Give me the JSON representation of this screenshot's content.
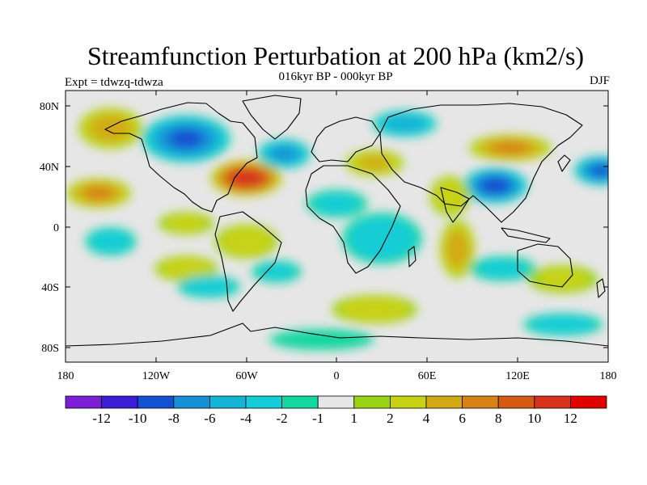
{
  "title": "Streamfunction Perturbation at 200 hPa (km2/s)",
  "subtitle": "016kyr BP - 000kyr BP",
  "left_label": "Expt = tdwzq-tdwza",
  "right_label": "DJF",
  "lat_ticks": [
    "80N",
    "40N",
    "0",
    "40S",
    "80S"
  ],
  "lon_ticks": [
    "180",
    "120W",
    "60W",
    "0",
    "60E",
    "120E",
    "180"
  ],
  "colorbar": {
    "colors": [
      "#7b1fd6",
      "#3a1fd6",
      "#1450d2",
      "#1490d6",
      "#14b4d6",
      "#14cdd6",
      "#14d6a0",
      "#e6e6e6",
      "#9ad214",
      "#c8d214",
      "#d2aa14",
      "#d68214",
      "#d65a14",
      "#d6321e",
      "#e00000"
    ],
    "labels": [
      "-12",
      "-10",
      "-8",
      "-6",
      "-4",
      "-2",
      "-1",
      "1",
      "2",
      "4",
      "6",
      "8",
      "10",
      "12"
    ]
  },
  "blobs": [
    {
      "lon": -60,
      "lat": 32,
      "v": 11,
      "rx": 24,
      "ry": 12
    },
    {
      "lon": -100,
      "lat": 58,
      "v": -8,
      "rx": 30,
      "ry": 16
    },
    {
      "lon": -35,
      "lat": 48,
      "v": -6,
      "rx": 18,
      "ry": 10
    },
    {
      "lon": -150,
      "lat": 65,
      "v": 5,
      "rx": 22,
      "ry": 14
    },
    {
      "lon": -158,
      "lat": 22,
      "v": 6,
      "rx": 22,
      "ry": 10
    },
    {
      "lon": 175,
      "lat": 37,
      "v": -8,
      "rx": 18,
      "ry": 10
    },
    {
      "lon": 105,
      "lat": 27,
      "v": -9,
      "rx": 22,
      "ry": 12
    },
    {
      "lon": 115,
      "lat": 52,
      "v": 6,
      "rx": 28,
      "ry": 9
    },
    {
      "lon": 25,
      "lat": 42,
      "v": 4,
      "rx": 20,
      "ry": 9
    },
    {
      "lon": 45,
      "lat": 68,
      "v": -5,
      "rx": 22,
      "ry": 9
    },
    {
      "lon": 75,
      "lat": 20,
      "v": 3,
      "rx": 14,
      "ry": 14
    },
    {
      "lon": 30,
      "lat": -8,
      "v": -3,
      "rx": 28,
      "ry": 18
    },
    {
      "lon": 0,
      "lat": 15,
      "v": -2,
      "rx": 22,
      "ry": 10
    },
    {
      "lon": 80,
      "lat": -15,
      "v": 5,
      "rx": 12,
      "ry": 20
    },
    {
      "lon": -60,
      "lat": -10,
      "v": 3,
      "rx": 22,
      "ry": 12
    },
    {
      "lon": -150,
      "lat": -10,
      "v": -3,
      "rx": 18,
      "ry": 10
    },
    {
      "lon": -100,
      "lat": 2,
      "v": 2,
      "rx": 20,
      "ry": 8
    },
    {
      "lon": -100,
      "lat": -28,
      "v": 3,
      "rx": 22,
      "ry": 9
    },
    {
      "lon": -85,
      "lat": -40,
      "v": -3,
      "rx": 22,
      "ry": 8
    },
    {
      "lon": -40,
      "lat": -30,
      "v": -2,
      "rx": 18,
      "ry": 8
    },
    {
      "lon": 25,
      "lat": -55,
      "v": 3,
      "rx": 30,
      "ry": 10
    },
    {
      "lon": 110,
      "lat": -28,
      "v": -2,
      "rx": 24,
      "ry": 9
    },
    {
      "lon": 150,
      "lat": -35,
      "v": 2,
      "rx": 25,
      "ry": 10
    },
    {
      "lon": 150,
      "lat": -65,
      "v": -3,
      "rx": 28,
      "ry": 8
    },
    {
      "lon": -10,
      "lat": -75,
      "v": -1,
      "rx": 40,
      "ry": 8
    }
  ]
}
